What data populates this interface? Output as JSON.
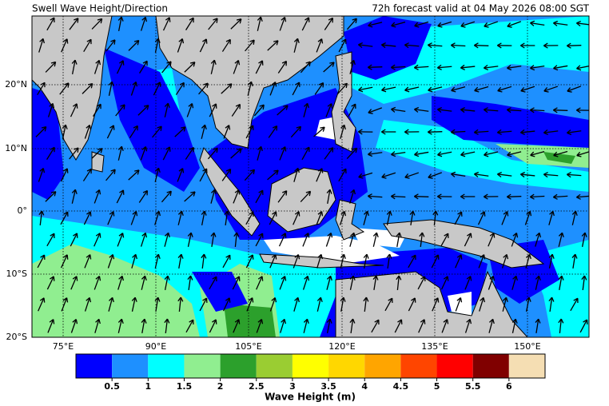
{
  "header": {
    "title": "Swell Wave Height/Direction",
    "valid": "72h forecast valid at 04 May 2026 08:00 SGT"
  },
  "map": {
    "lat_labels": [
      "20°N",
      "10°N",
      "0°",
      "10°S",
      "20°S"
    ],
    "lon_labels": [
      "75°E",
      "90°E",
      "105°E",
      "120°E",
      "135°E",
      "150°E"
    ]
  },
  "colorbar": {
    "label": "Wave Height (m)",
    "ticks": [
      "0.5",
      "1",
      "1.5",
      "2",
      "2.5",
      "3",
      "3.5",
      "4",
      "4.5",
      "5",
      "5.5",
      "6"
    ],
    "colors": [
      "#0000ff",
      "#1e90ff",
      "#00ffff",
      "#90ee90",
      "#2ca02c",
      "#9acd32",
      "#ffff00",
      "#ffd700",
      "#ffa500",
      "#ff4500",
      "#ff0000",
      "#800000",
      "#f5deb3"
    ]
  }
}
